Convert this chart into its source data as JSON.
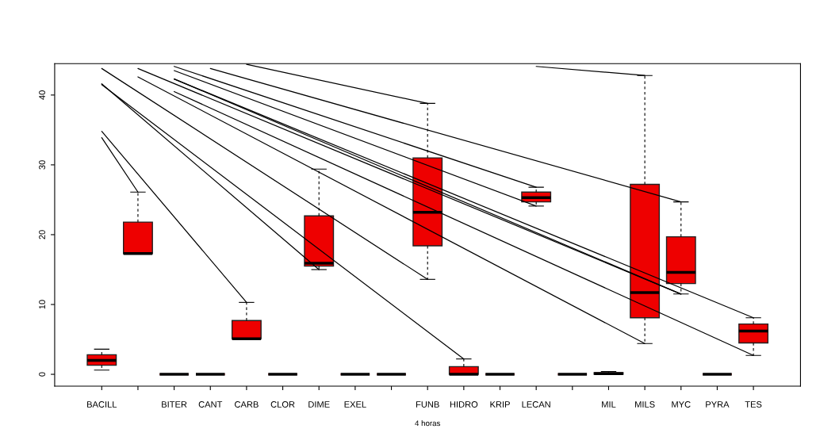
{
  "chart_data": {
    "type": "box",
    "xlabel": "4 horas",
    "categories": [
      "BACILL",
      null,
      "BITER",
      "CANT",
      "CARB",
      "CLOR",
      "DIME",
      "EXEL",
      null,
      "FUNB",
      "HIDRO",
      "KRIP",
      "LECAN",
      null,
      "MIL",
      "MILS",
      "MYC",
      "PYRA",
      "TES"
    ],
    "series": [
      {
        "color": "#ee0000",
        "boxes": [
          {
            "low": 0.6,
            "q1": 1.3,
            "median": 2.0,
            "q3": 2.8,
            "high": 3.6
          },
          {
            "low": 17.3,
            "q1": 17.3,
            "median": 17.3,
            "q3": 21.8,
            "high": 26.1
          },
          {
            "low": 0,
            "q1": 0,
            "median": 0,
            "q3": 0,
            "high": 0
          },
          {
            "low": 0,
            "q1": 0,
            "median": 0,
            "q3": 0,
            "high": 0
          },
          {
            "low": 5.1,
            "q1": 5.1,
            "median": 5.1,
            "q3": 7.7,
            "high": 10.3
          },
          {
            "low": 0,
            "q1": 0,
            "median": 0,
            "q3": 0,
            "high": 0
          },
          {
            "low": 15.0,
            "q1": 15.5,
            "median": 15.9,
            "q3": 22.7,
            "high": 29.4
          },
          {
            "low": 0,
            "q1": 0,
            "median": 0,
            "q3": 0,
            "high": 0
          },
          {
            "low": 0,
            "q1": 0,
            "median": 0,
            "q3": 0,
            "high": 0
          },
          {
            "low": 13.6,
            "q1": 18.4,
            "median": 23.2,
            "q3": 31.0,
            "high": 38.8
          },
          {
            "low": 0,
            "q1": 0,
            "median": 0,
            "q3": 1.1,
            "high": 2.2
          },
          {
            "low": 0,
            "q1": 0,
            "median": 0,
            "q3": 0,
            "high": 0
          },
          {
            "low": 24.1,
            "q1": 24.7,
            "median": 25.3,
            "q3": 26.1,
            "high": 26.8
          },
          {
            "low": 0,
            "q1": 0,
            "median": 0,
            "q3": 0,
            "high": 0
          },
          {
            "low": 0,
            "q1": 0,
            "median": 0.1,
            "q3": 0.25,
            "high": 0.4
          },
          {
            "low": 4.4,
            "q1": 8.1,
            "median": 11.7,
            "q3": 27.2,
            "high": 42.8
          },
          {
            "low": 11.5,
            "q1": 13.0,
            "median": 14.6,
            "q3": 19.7,
            "high": 24.7
          },
          {
            "low": 0,
            "q1": 0,
            "median": 0,
            "q3": 0,
            "high": 0
          },
          {
            "low": 2.7,
            "q1": 4.5,
            "median": 6.2,
            "q3": 7.2,
            "high": 8.1
          }
        ]
      },
      {
        "type": "line",
        "color": "#000000",
        "values": [
          33.9,
          26.1,
          null,
          null,
          null,
          null,
          null,
          null,
          null,
          null,
          null,
          null,
          null,
          null,
          null,
          null,
          null,
          null,
          null
        ]
      },
      {
        "type": "line",
        "color": "#000000",
        "values": [
          34.8,
          null,
          null,
          null,
          10.3,
          null,
          null,
          null,
          null,
          null,
          null,
          null,
          null,
          null,
          null,
          null,
          null,
          null,
          null
        ]
      },
      {
        "type": "line",
        "color": "#000000",
        "values": [
          41.5,
          null,
          null,
          null,
          null,
          null,
          null,
          null,
          null,
          null,
          2.2,
          null,
          null,
          null,
          null,
          null,
          null,
          null,
          null
        ]
      },
      {
        "type": "line",
        "color": "#000000",
        "values": [
          41.6,
          null,
          null,
          null,
          null,
          null,
          15.0,
          null,
          null,
          null,
          null,
          null,
          null,
          null,
          null,
          null,
          null,
          null,
          null
        ]
      },
      {
        "type": "line",
        "color": "#000000",
        "values": [
          43.8,
          null,
          null,
          null,
          null,
          null,
          null,
          null,
          null,
          13.6,
          null,
          null,
          null,
          null,
          null,
          null,
          null,
          null,
          null
        ]
      },
      {
        "type": "line",
        "color": "#000000",
        "values": [
          null,
          42.6,
          null,
          null,
          null,
          null,
          null,
          null,
          null,
          null,
          null,
          null,
          null,
          null,
          null,
          4.4,
          null,
          null,
          null
        ]
      },
      {
        "type": "line",
        "color": "#000000",
        "values": [
          null,
          null,
          40.5,
          null,
          null,
          null,
          null,
          null,
          null,
          null,
          null,
          null,
          null,
          null,
          null,
          null,
          null,
          null,
          2.7
        ]
      },
      {
        "type": "line",
        "color": "#000000",
        "values": [
          null,
          43.8,
          null,
          null,
          null,
          null,
          null,
          null,
          null,
          null,
          null,
          null,
          null,
          null,
          null,
          null,
          11.5,
          null,
          null
        ]
      },
      {
        "type": "line",
        "color": "#000000",
        "values": [
          null,
          null,
          42.3,
          null,
          null,
          null,
          null,
          null,
          null,
          null,
          null,
          null,
          null,
          null,
          null,
          null,
          null,
          null,
          8.1
        ]
      },
      {
        "type": "line",
        "color": "#000000",
        "values": [
          null,
          null,
          42.3,
          null,
          null,
          null,
          null,
          null,
          null,
          null,
          null,
          null,
          null,
          null,
          null,
          null,
          11.5,
          null,
          null
        ]
      },
      {
        "type": "line",
        "color": "#000000",
        "values": [
          null,
          null,
          43.5,
          null,
          null,
          null,
          null,
          null,
          null,
          null,
          null,
          null,
          24.1,
          null,
          null,
          null,
          null,
          null,
          null
        ]
      },
      {
        "type": "line",
        "color": "#000000",
        "values": [
          null,
          null,
          44.1,
          null,
          null,
          null,
          null,
          null,
          null,
          null,
          null,
          null,
          26.8,
          null,
          null,
          null,
          null,
          null,
          null
        ]
      },
      {
        "type": "line",
        "color": "#000000",
        "values": [
          null,
          null,
          null,
          43.8,
          null,
          null,
          null,
          null,
          null,
          null,
          null,
          null,
          null,
          null,
          null,
          null,
          24.7,
          null,
          null
        ]
      },
      {
        "type": "line",
        "color": "#000000",
        "values": [
          null,
          null,
          null,
          null,
          44.4,
          null,
          null,
          null,
          null,
          38.8,
          null,
          null,
          null,
          null,
          null,
          null,
          null,
          null,
          null
        ]
      },
      {
        "type": "line",
        "color": "#000000",
        "values": [
          null,
          null,
          null,
          null,
          null,
          null,
          null,
          null,
          null,
          null,
          null,
          null,
          44.1,
          null,
          null,
          42.8,
          null,
          null,
          null
        ]
      }
    ],
    "ylim": [
      -1.7,
      44.5
    ],
    "yticks": [
      0,
      10,
      20,
      30,
      40
    ],
    "grid": false,
    "legend": false
  }
}
